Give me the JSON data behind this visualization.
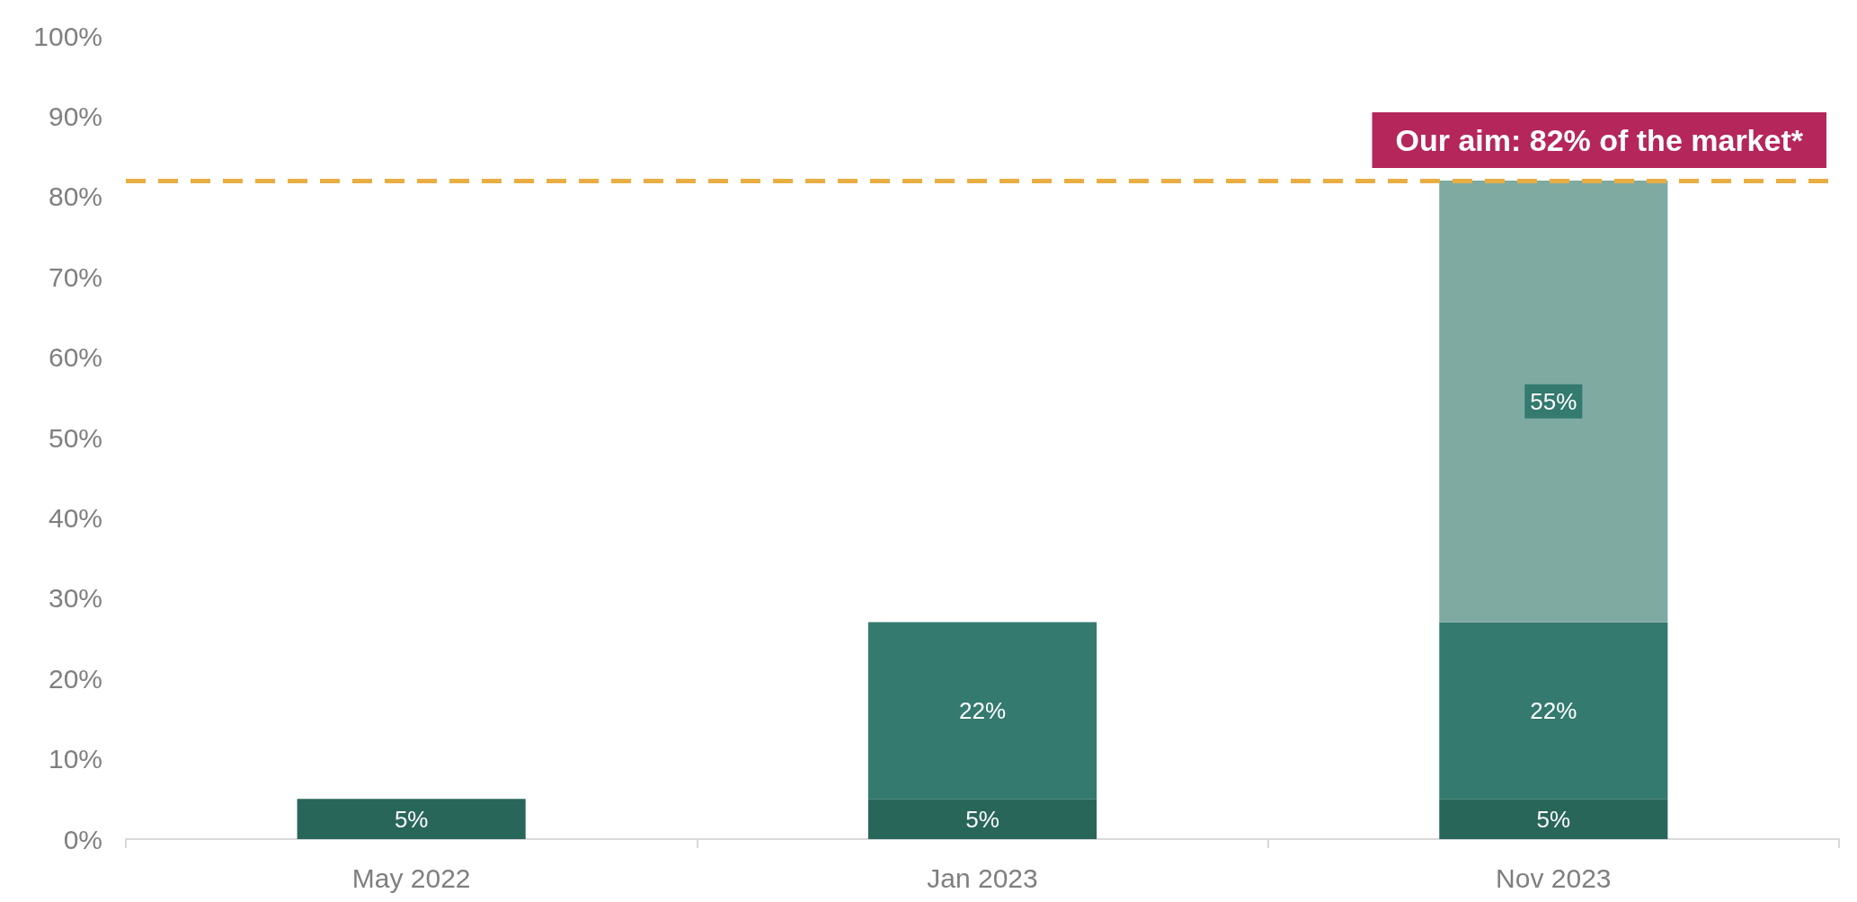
{
  "chart_data": {
    "type": "bar",
    "categories": [
      "May 2022",
      "Jan 2023",
      "Nov 2023"
    ],
    "stacked": true,
    "series": [
      {
        "color": "#29665a",
        "values": [
          5,
          5,
          5
        ],
        "value_labels": [
          "5%",
          "5%",
          "5%"
        ]
      },
      {
        "color": "#347a6e",
        "values": [
          null,
          22,
          22
        ],
        "value_labels": [
          null,
          "22%",
          "22%"
        ]
      },
      {
        "color": "#7eaaa1",
        "values": [
          null,
          null,
          55
        ],
        "value_labels": [
          null,
          null,
          "55%"
        ]
      }
    ],
    "ylim": [
      0,
      100
    ],
    "yticks": [
      {
        "value": 0,
        "label": "0%"
      },
      {
        "value": 10,
        "label": "10%"
      },
      {
        "value": 20,
        "label": "20%"
      },
      {
        "value": 30,
        "label": "30%"
      },
      {
        "value": 40,
        "label": "40%"
      },
      {
        "value": 50,
        "label": "50%"
      },
      {
        "value": 60,
        "label": "60%"
      },
      {
        "value": 70,
        "label": "70%"
      },
      {
        "value": 80,
        "label": "80%"
      },
      {
        "value": 90,
        "label": "90%"
      },
      {
        "value": 100,
        "label": "100%"
      }
    ],
    "ref_lines": [
      {
        "axis": "y",
        "value": 82,
        "label": "Our aim: 82% of the market*",
        "color": "#e8ae43",
        "line_style": "dashed"
      }
    ],
    "grid": false
  }
}
